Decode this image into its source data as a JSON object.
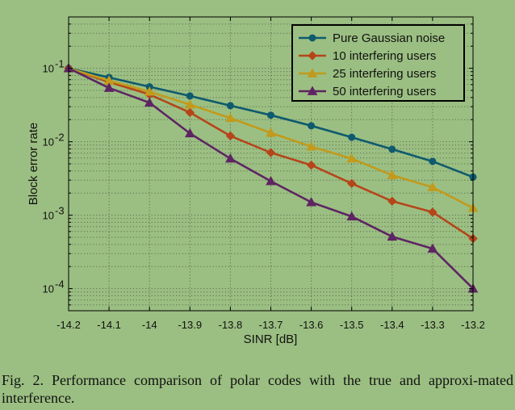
{
  "chart_data": {
    "type": "line",
    "title": "",
    "xlabel": "SINR [dB]",
    "ylabel": "Block error rate",
    "xlim": [
      -14.2,
      -13.2
    ],
    "ylim": [
      5e-05,
      0.5
    ],
    "yscale": "log",
    "grid": true,
    "legend_position": "top-right",
    "x": [
      -14.2,
      -14.1,
      -14.0,
      -13.9,
      -13.8,
      -13.7,
      -13.6,
      -13.5,
      -13.4,
      -13.3,
      -13.2
    ],
    "x_tick_labels": [
      "-14.2",
      "-14.1",
      "-14",
      "-13.9",
      "-13.8",
      "-13.7",
      "-13.6",
      "-13.5",
      "-13.4",
      "-13.3",
      "-13.2"
    ],
    "y_ticks": [
      {
        "value": 0.1,
        "base": "10",
        "exp": "-1"
      },
      {
        "value": 0.01,
        "base": "10",
        "exp": "-2"
      },
      {
        "value": 0.001,
        "base": "10",
        "exp": "-3"
      },
      {
        "value": 0.0001,
        "base": "10",
        "exp": "-4"
      }
    ],
    "series": [
      {
        "name": "Pure Gaussian noise",
        "color": "#0e5a6e",
        "marker": "circle",
        "values": [
          0.1,
          0.075,
          0.056,
          0.042,
          0.031,
          0.023,
          0.0165,
          0.0115,
          0.0079,
          0.0054,
          0.0033
        ]
      },
      {
        "name": "10 interfering users",
        "color": "#b5461a",
        "marker": "diamond",
        "values": [
          0.1,
          0.065,
          0.044,
          0.025,
          0.012,
          0.0071,
          0.0048,
          0.0027,
          0.00155,
          0.0011,
          0.00048
        ]
      },
      {
        "name": "25 interfering users",
        "color": "#c29a1c",
        "marker": "triangle",
        "values": [
          0.1,
          0.068,
          0.048,
          0.032,
          0.021,
          0.0132,
          0.0086,
          0.0059,
          0.0035,
          0.0024,
          0.00125
        ]
      },
      {
        "name": "50 interfering users",
        "color": "#5e2563",
        "marker": "triangle",
        "values": [
          0.1,
          0.054,
          0.034,
          0.013,
          0.0059,
          0.0029,
          0.0015,
          0.00096,
          0.00051,
          0.00035,
          0.0001
        ]
      }
    ]
  },
  "caption": {
    "text": "Fig. 2.  Performance comparison of polar codes with the true and approxi-mated interference."
  }
}
